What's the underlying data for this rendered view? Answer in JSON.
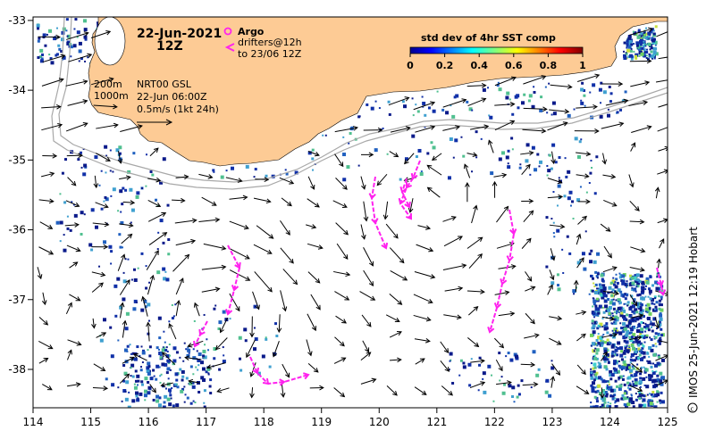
{
  "map": {
    "title_date": "22-Jun-2021",
    "title_time": "12Z",
    "legend": {
      "argo_label": "Argo",
      "drifters_label": "drifters@12h",
      "drifters_until": "to 23/06 12Z"
    },
    "info": {
      "depth_200": "200m",
      "depth_1000": "1000m",
      "product": "NRT00 GSL",
      "product_time": "22-Jun 06:00Z",
      "scale": "0.5m/s (1kt 24h)"
    },
    "colorbar": {
      "title": "std dev of 4hr SST comp",
      "ticks": [
        "0",
        "0.2",
        "0.4",
        "0.6",
        "0.8",
        "1"
      ]
    },
    "credit": "IMOS 25-Jun-2021 12:19 Hobart",
    "axes": {
      "x_ticks": [
        "114",
        "115",
        "116",
        "117",
        "118",
        "119",
        "120",
        "121",
        "122",
        "123",
        "124",
        "125"
      ],
      "y_ticks": [
        "-33",
        "-34",
        "-35",
        "-36",
        "-37",
        "-38"
      ],
      "x_range": [
        114,
        125
      ],
      "y_range": [
        -38.55,
        -32.95
      ]
    },
    "colors": {
      "land": "#fdcb95",
      "arrow": "#000000",
      "drifter": "#ff22ee",
      "isobath": "#a8a8a8"
    }
  }
}
